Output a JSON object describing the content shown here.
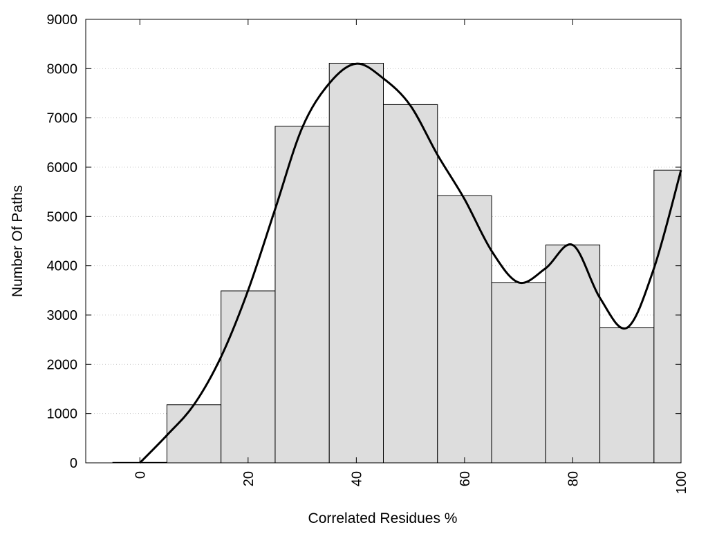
{
  "chart_data": {
    "type": "bar",
    "xlabel": "Correlated Residues %",
    "ylabel": "Number Of Paths",
    "xlim": [
      -10,
      100
    ],
    "ylim": [
      0,
      9000
    ],
    "x_ticks": [
      0,
      20,
      40,
      60,
      80,
      100
    ],
    "y_ticks": [
      0,
      1000,
      2000,
      3000,
      4000,
      5000,
      6000,
      7000,
      8000,
      9000
    ],
    "grid": "horizontal dotted",
    "bin_width": 10,
    "bins": [
      {
        "center": 0,
        "value": 10
      },
      {
        "center": 10,
        "value": 1180
      },
      {
        "center": 20,
        "value": 3490
      },
      {
        "center": 30,
        "value": 6830
      },
      {
        "center": 40,
        "value": 8110
      },
      {
        "center": 50,
        "value": 7270
      },
      {
        "center": 60,
        "value": 5420
      },
      {
        "center": 70,
        "value": 3660
      },
      {
        "center": 80,
        "value": 4420
      },
      {
        "center": 90,
        "value": 2740
      },
      {
        "center": 100,
        "value": 5940
      }
    ],
    "curve": {
      "type": "smooth-line",
      "x": [
        0,
        5,
        10,
        15,
        20,
        25,
        30,
        35,
        40,
        45,
        50,
        55,
        60,
        65,
        70,
        75,
        80,
        85,
        90,
        95,
        100
      ],
      "y": [
        0,
        560,
        1180,
        2150,
        3500,
        5150,
        6800,
        7700,
        8100,
        7800,
        7250,
        6250,
        5350,
        4300,
        3660,
        3950,
        4420,
        3350,
        2740,
        3950,
        5940
      ]
    },
    "colors": {
      "bar_fill": "#dddddd",
      "bar_stroke": "#000000",
      "curve": "#000000",
      "grid": "#c8c8c8"
    }
  }
}
